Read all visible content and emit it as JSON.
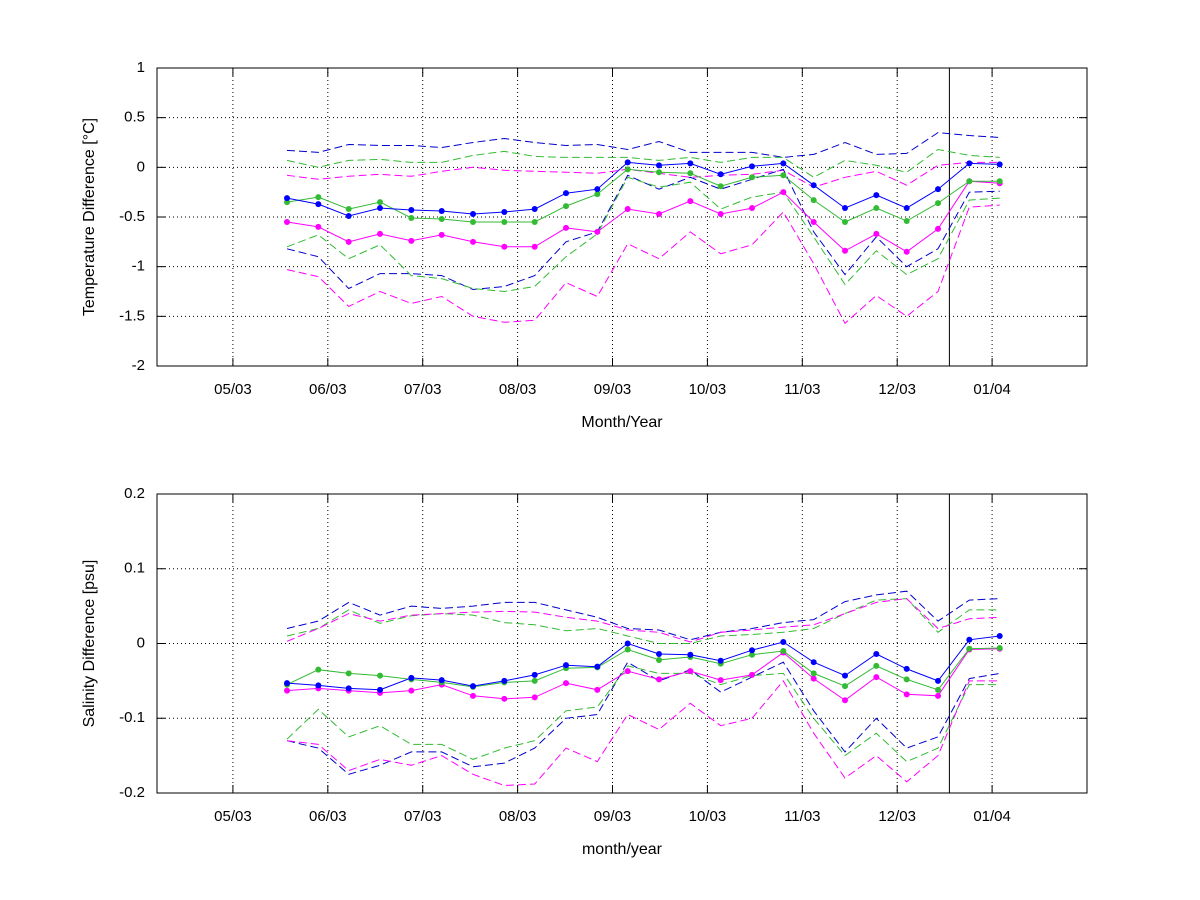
{
  "chart_data": [
    {
      "type": "line",
      "xlabel": "Month/Year",
      "ylabel": "Temperature Difference [°C]",
      "xlim": [
        4.2,
        14.0
      ],
      "ylim": [
        -2,
        1
      ],
      "xticks": [
        {
          "value": 5,
          "label": "05/03"
        },
        {
          "value": 6,
          "label": "06/03"
        },
        {
          "value": 7,
          "label": "07/03"
        },
        {
          "value": 8,
          "label": "08/03"
        },
        {
          "value": 9,
          "label": "09/03"
        },
        {
          "value": 10,
          "label": "10/03"
        },
        {
          "value": 11,
          "label": "11/03"
        },
        {
          "value": 12,
          "label": "12/03"
        },
        {
          "value": 13,
          "label": "01/04"
        }
      ],
      "yticks": [
        -2,
        -1.5,
        -1,
        -0.5,
        0,
        0.5,
        1
      ],
      "grid": true,
      "vline": 12.55,
      "x": [
        5.57,
        5.9,
        6.22,
        6.55,
        6.88,
        7.2,
        7.53,
        7.86,
        8.18,
        8.51,
        8.84,
        9.16,
        9.49,
        9.82,
        10.14,
        10.47,
        10.8,
        11.12,
        11.45,
        11.78,
        12.1,
        12.43,
        12.76,
        13.08
      ],
      "series": [
        {
          "color": "#0000cc",
          "style": "dashed",
          "marker": false,
          "values": [
            0.17,
            0.15,
            0.23,
            0.22,
            0.22,
            0.2,
            0.25,
            0.29,
            0.25,
            0.22,
            0.23,
            0.18,
            0.26,
            0.15,
            0.15,
            0.15,
            0.1,
            0.13,
            0.25,
            0.13,
            0.14,
            0.35,
            0.32,
            0.3
          ]
        },
        {
          "color": "#33bb33",
          "style": "dashed",
          "marker": false,
          "values": [
            0.07,
            0.0,
            0.07,
            0.08,
            0.05,
            0.05,
            0.12,
            0.16,
            0.11,
            0.1,
            0.1,
            0.1,
            0.07,
            0.1,
            0.05,
            0.1,
            0.1,
            -0.1,
            0.07,
            0.02,
            -0.05,
            0.18,
            0.12,
            0.1
          ]
        },
        {
          "color": "#ff00ff",
          "style": "dashed",
          "marker": false,
          "values": [
            -0.08,
            -0.12,
            -0.09,
            -0.07,
            -0.09,
            -0.04,
            0.0,
            -0.03,
            -0.04,
            -0.05,
            -0.06,
            -0.02,
            -0.06,
            -0.1,
            -0.08,
            -0.07,
            -0.03,
            -0.2,
            -0.1,
            -0.04,
            -0.18,
            0.02,
            0.05,
            0.05
          ]
        },
        {
          "color": "#0000cc",
          "style": "dashed",
          "marker": false,
          "values": [
            -0.82,
            -0.9,
            -1.22,
            -1.07,
            -1.07,
            -1.09,
            -1.23,
            -1.2,
            -1.09,
            -0.75,
            -0.65,
            -0.08,
            -0.22,
            -0.1,
            -0.22,
            -0.12,
            -0.02,
            -0.65,
            -1.08,
            -0.7,
            -1.0,
            -0.82,
            -0.25,
            -0.24
          ]
        },
        {
          "color": "#33bb33",
          "style": "dashed",
          "marker": false,
          "values": [
            -0.8,
            -0.68,
            -0.92,
            -0.78,
            -1.09,
            -1.12,
            -1.22,
            -1.25,
            -1.2,
            -0.9,
            -0.67,
            -0.1,
            -0.2,
            -0.15,
            -0.42,
            -0.3,
            -0.25,
            -0.7,
            -1.18,
            -0.84,
            -1.08,
            -0.92,
            -0.33,
            -0.31
          ]
        },
        {
          "color": "#ff00ff",
          "style": "dashed",
          "marker": false,
          "values": [
            -1.03,
            -1.1,
            -1.4,
            -1.25,
            -1.37,
            -1.3,
            -1.5,
            -1.56,
            -1.54,
            -1.16,
            -1.3,
            -0.77,
            -0.92,
            -0.65,
            -0.87,
            -0.78,
            -0.45,
            -0.97,
            -1.57,
            -1.29,
            -1.5,
            -1.25,
            -0.4,
            -0.38
          ]
        },
        {
          "color": "#ff00ff",
          "style": "solid",
          "marker": true,
          "values": [
            -0.55,
            -0.6,
            -0.75,
            -0.67,
            -0.74,
            -0.68,
            -0.75,
            -0.8,
            -0.8,
            -0.61,
            -0.65,
            -0.42,
            -0.47,
            -0.34,
            -0.47,
            -0.41,
            -0.25,
            -0.55,
            -0.84,
            -0.67,
            -0.85,
            -0.62,
            -0.14,
            -0.16
          ]
        },
        {
          "color": "#33bb33",
          "style": "solid",
          "marker": true,
          "values": [
            -0.35,
            -0.3,
            -0.42,
            -0.35,
            -0.51,
            -0.52,
            -0.55,
            -0.55,
            -0.55,
            -0.39,
            -0.27,
            -0.02,
            -0.05,
            -0.06,
            -0.19,
            -0.1,
            -0.08,
            -0.33,
            -0.55,
            -0.41,
            -0.54,
            -0.36,
            -0.14,
            -0.14
          ]
        },
        {
          "color": "#0000ff",
          "style": "solid",
          "marker": true,
          "values": [
            -0.31,
            -0.37,
            -0.49,
            -0.41,
            -0.43,
            -0.44,
            -0.47,
            -0.45,
            -0.42,
            -0.26,
            -0.22,
            0.05,
            0.02,
            0.04,
            -0.07,
            0.01,
            0.04,
            -0.18,
            -0.41,
            -0.28,
            -0.41,
            -0.22,
            0.04,
            0.03
          ]
        }
      ]
    },
    {
      "type": "line",
      "xlabel": "month/year",
      "ylabel": "Salinity Difference [psu]",
      "xlim": [
        4.2,
        14.0
      ],
      "ylim": [
        -0.2,
        0.2
      ],
      "xticks": [
        {
          "value": 5,
          "label": "05/03"
        },
        {
          "value": 6,
          "label": "06/03"
        },
        {
          "value": 7,
          "label": "07/03"
        },
        {
          "value": 8,
          "label": "08/03"
        },
        {
          "value": 9,
          "label": "09/03"
        },
        {
          "value": 10,
          "label": "10/03"
        },
        {
          "value": 11,
          "label": "11/03"
        },
        {
          "value": 12,
          "label": "12/03"
        },
        {
          "value": 13,
          "label": "01/04"
        }
      ],
      "yticks": [
        -0.2,
        -0.1,
        0,
        0.1,
        0.2
      ],
      "grid": true,
      "vline": 12.55,
      "x": [
        5.57,
        5.9,
        6.22,
        6.55,
        6.88,
        7.2,
        7.53,
        7.86,
        8.18,
        8.51,
        8.84,
        9.16,
        9.49,
        9.82,
        10.14,
        10.47,
        10.8,
        11.12,
        11.45,
        11.78,
        12.1,
        12.43,
        12.76,
        13.08
      ],
      "series": [
        {
          "color": "#0000cc",
          "style": "dashed",
          "marker": false,
          "values": [
            0.02,
            0.03,
            0.055,
            0.038,
            0.05,
            0.047,
            0.05,
            0.055,
            0.055,
            0.045,
            0.035,
            0.02,
            0.018,
            0.005,
            0.015,
            0.02,
            0.028,
            0.032,
            0.056,
            0.065,
            0.07,
            0.03,
            0.058,
            0.06
          ]
        },
        {
          "color": "#33bb33",
          "style": "dashed",
          "marker": false,
          "values": [
            0.01,
            0.02,
            0.045,
            0.027,
            0.037,
            0.04,
            0.038,
            0.028,
            0.025,
            0.017,
            0.02,
            0.01,
            0.0,
            0.0,
            0.01,
            0.012,
            0.015,
            0.02,
            0.04,
            0.058,
            0.06,
            0.015,
            0.045,
            0.045
          ]
        },
        {
          "color": "#ff00ff",
          "style": "dashed",
          "marker": false,
          "values": [
            0.003,
            0.02,
            0.04,
            0.03,
            0.038,
            0.04,
            0.042,
            0.043,
            0.042,
            0.035,
            0.03,
            0.018,
            0.015,
            0.002,
            0.015,
            0.018,
            0.022,
            0.025,
            0.04,
            0.055,
            0.06,
            0.02,
            0.033,
            0.035
          ]
        },
        {
          "color": "#0000cc",
          "style": "dashed",
          "marker": false,
          "values": [
            -0.13,
            -0.14,
            -0.175,
            -0.163,
            -0.145,
            -0.145,
            -0.165,
            -0.16,
            -0.14,
            -0.1,
            -0.095,
            -0.025,
            -0.05,
            -0.035,
            -0.065,
            -0.045,
            -0.025,
            -0.09,
            -0.145,
            -0.1,
            -0.14,
            -0.125,
            -0.047,
            -0.04
          ]
        },
        {
          "color": "#33bb33",
          "style": "dashed",
          "marker": false,
          "values": [
            -0.128,
            -0.088,
            -0.125,
            -0.11,
            -0.135,
            -0.135,
            -0.155,
            -0.14,
            -0.13,
            -0.09,
            -0.085,
            -0.03,
            -0.04,
            -0.04,
            -0.055,
            -0.043,
            -0.04,
            -0.1,
            -0.15,
            -0.12,
            -0.158,
            -0.14,
            -0.055,
            -0.055
          ]
        },
        {
          "color": "#ff00ff",
          "style": "dashed",
          "marker": false,
          "values": [
            -0.13,
            -0.135,
            -0.17,
            -0.155,
            -0.163,
            -0.15,
            -0.175,
            -0.19,
            -0.188,
            -0.14,
            -0.158,
            -0.095,
            -0.115,
            -0.08,
            -0.11,
            -0.1,
            -0.05,
            -0.12,
            -0.18,
            -0.15,
            -0.185,
            -0.15,
            -0.05,
            -0.05
          ]
        },
        {
          "color": "#ff00ff",
          "style": "solid",
          "marker": true,
          "values": [
            -0.063,
            -0.06,
            -0.063,
            -0.066,
            -0.063,
            -0.055,
            -0.07,
            -0.074,
            -0.072,
            -0.053,
            -0.062,
            -0.037,
            -0.048,
            -0.037,
            -0.049,
            -0.042,
            -0.012,
            -0.047,
            -0.076,
            -0.045,
            -0.068,
            -0.07,
            -0.008,
            -0.007
          ]
        },
        {
          "color": "#33bb33",
          "style": "solid",
          "marker": true,
          "values": [
            -0.055,
            -0.035,
            -0.04,
            -0.043,
            -0.048,
            -0.052,
            -0.058,
            -0.052,
            -0.05,
            -0.033,
            -0.032,
            -0.008,
            -0.022,
            -0.018,
            -0.027,
            -0.015,
            -0.01,
            -0.04,
            -0.057,
            -0.03,
            -0.048,
            -0.062,
            -0.007,
            -0.006
          ]
        },
        {
          "color": "#0000ff",
          "style": "solid",
          "marker": true,
          "values": [
            -0.053,
            -0.056,
            -0.06,
            -0.062,
            -0.046,
            -0.049,
            -0.057,
            -0.05,
            -0.042,
            -0.029,
            -0.031,
            0.0,
            -0.014,
            -0.015,
            -0.023,
            -0.009,
            0.002,
            -0.025,
            -0.043,
            -0.014,
            -0.034,
            -0.05,
            0.005,
            0.01
          ]
        }
      ]
    }
  ]
}
